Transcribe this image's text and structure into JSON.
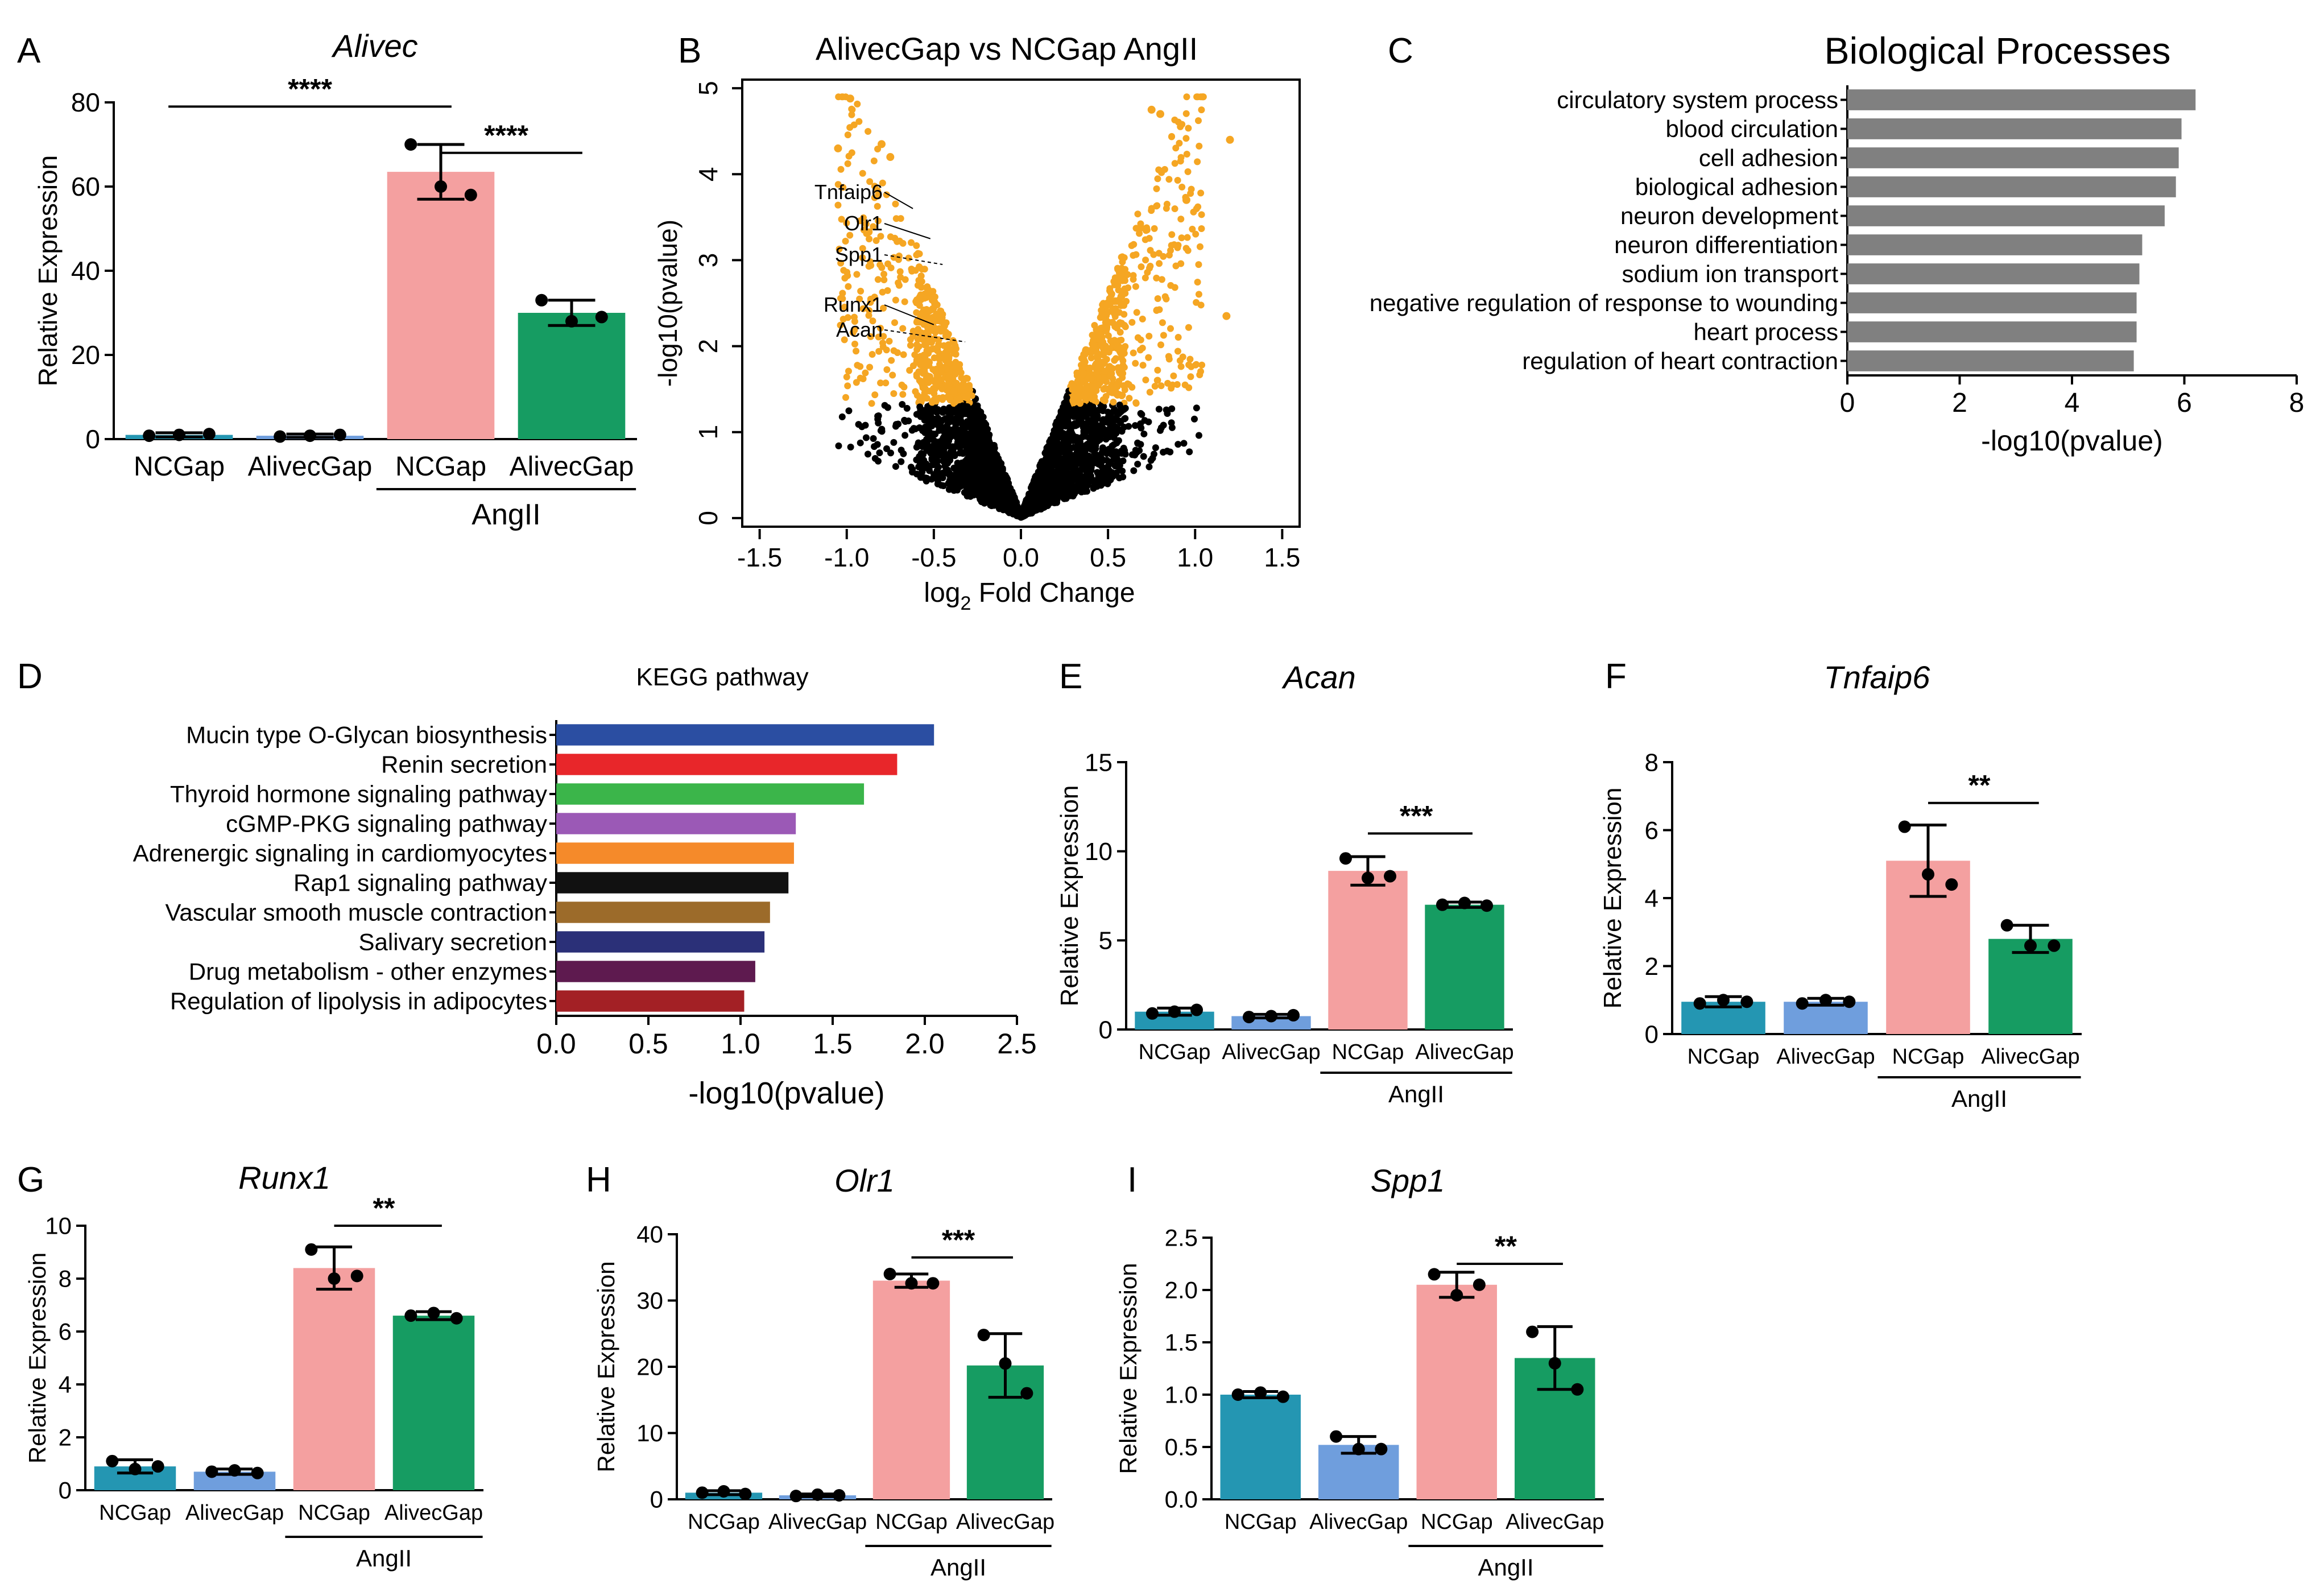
{
  "panel_letters": [
    "A",
    "B",
    "C",
    "D",
    "E",
    "F",
    "G",
    "H",
    "I"
  ],
  "colors": {
    "ncgap": "#2496b2",
    "alivecgap": "#6f9edd",
    "angii_ncgap": "#f4a0a0",
    "angii_alivecgap": "#169c62",
    "volcano_sig": "#f5a623",
    "volcano_ns": "#000000",
    "go_bar": "#808080"
  },
  "chart_data": [
    {
      "panel": "A",
      "type": "bar",
      "title": "Alivec",
      "ylabel": "Relative Expression",
      "ylim": [
        0,
        80
      ],
      "yticks": [
        0,
        20,
        40,
        60,
        80
      ],
      "categories": [
        "NCGap",
        "AlivecGap",
        "NCGap",
        "AlivecGap"
      ],
      "group_label": "AngII",
      "values": [
        1.0,
        0.8,
        63.5,
        30.0
      ],
      "errors": [
        0.5,
        0.4,
        6.5,
        3.0
      ],
      "points": [
        [
          0.8,
          1.0,
          1.2
        ],
        [
          0.6,
          0.8,
          1.0
        ],
        [
          70,
          60,
          58
        ],
        [
          33,
          28,
          29
        ]
      ],
      "significance": [
        {
          "from": 0,
          "to": 2,
          "label": "****",
          "level": 79
        },
        {
          "from": 2,
          "to": 3,
          "label": "****",
          "level": 68
        }
      ]
    },
    {
      "panel": "B",
      "type": "scatter",
      "title": "AlivecGap vs NCGap AngII",
      "xlabel": "log2 Fold Change",
      "xlabel_main": "log",
      "xlabel_sub": "2",
      "xlabel_rest": " Fold Change",
      "ylabel": "-log10(pvalue)",
      "xlim": [
        -1.6,
        1.6
      ],
      "ylim": [
        -0.1,
        5.1
      ],
      "xticks": [
        -1.5,
        -1.0,
        -0.5,
        0.0,
        0.5,
        1.0,
        1.5
      ],
      "yticks": [
        0,
        1,
        2,
        3,
        4,
        5
      ],
      "labeled_genes": [
        {
          "name": "Tnfaip6",
          "x": -0.62,
          "y": 3.6
        },
        {
          "name": "Olr1",
          "x": -0.52,
          "y": 3.25
        },
        {
          "name": "Spp1",
          "x": -0.45,
          "y": 2.95
        },
        {
          "name": "Runx1",
          "x": -0.5,
          "y": 2.25
        },
        {
          "name": "Acan",
          "x": -0.32,
          "y": 2.05
        }
      ]
    },
    {
      "panel": "C",
      "type": "bar",
      "orientation": "horizontal",
      "title": "Biological Processes",
      "xlabel": "-log10(pvalue)",
      "xlim": [
        0,
        8
      ],
      "xticks": [
        0,
        2,
        4,
        6,
        8
      ],
      "categories": [
        "circulatory system process",
        "blood circulation",
        "cell adhesion",
        "biological adhesion",
        "neuron development",
        "neuron differentiation",
        "sodium ion transport",
        "negative regulation of response to wounding",
        "heart process",
        "regulation of heart contraction"
      ],
      "values": [
        6.2,
        5.95,
        5.9,
        5.85,
        5.65,
        5.25,
        5.2,
        5.15,
        5.15,
        5.1
      ]
    },
    {
      "panel": "D",
      "type": "bar",
      "orientation": "horizontal",
      "title": "KEGG pathway",
      "xlabel": "-log10(pvalue)",
      "xlim": [
        0,
        2.5
      ],
      "xticks": [
        0.0,
        0.5,
        1.0,
        1.5,
        2.0,
        2.5
      ],
      "categories": [
        "Mucin type O-Glycan biosynthesis",
        "Renin secretion",
        "Thyroid hormone signaling pathway",
        "cGMP-PKG signaling pathway",
        "Adrenergic signaling in cardiomyocytes",
        "Rap1 signaling pathway",
        "Vascular smooth muscle contraction",
        "Salivary secretion",
        "Drug metabolism - other enzymes",
        "Regulation of lipolysis in adipocytes"
      ],
      "values": [
        2.05,
        1.85,
        1.67,
        1.3,
        1.29,
        1.26,
        1.16,
        1.13,
        1.08,
        1.02
      ],
      "bar_colors": [
        "#2b4ea2",
        "#e8262a",
        "#3bb54a",
        "#9b59b6",
        "#f58a2a",
        "#111111",
        "#9c6b2a",
        "#2b3078",
        "#5e1a4f",
        "#a32025"
      ]
    },
    {
      "panel": "E",
      "type": "bar",
      "title": "Acan",
      "ylabel": "Relative Expression",
      "ylim": [
        0,
        15
      ],
      "yticks": [
        0,
        5,
        10,
        15
      ],
      "categories": [
        "NCGap",
        "AlivecGap",
        "NCGap",
        "AlivecGap"
      ],
      "group_label": "AngII",
      "values": [
        1.0,
        0.75,
        8.9,
        7.0
      ],
      "errors": [
        0.2,
        0.1,
        0.8,
        0.15
      ],
      "points": [
        [
          0.9,
          1.0,
          1.1
        ],
        [
          0.7,
          0.75,
          0.8
        ],
        [
          9.6,
          8.5,
          8.6
        ],
        [
          7.0,
          7.1,
          6.95
        ]
      ],
      "significance": [
        {
          "from": 2,
          "to": 3,
          "label": "***",
          "level": 11
        }
      ]
    },
    {
      "panel": "F",
      "type": "bar",
      "title": "Tnfaip6",
      "ylabel": "Relative Expression",
      "ylim": [
        0,
        8
      ],
      "yticks": [
        0,
        2,
        4,
        6,
        8
      ],
      "categories": [
        "NCGap",
        "AlivecGap",
        "NCGap",
        "AlivecGap"
      ],
      "group_label": "AngII",
      "values": [
        0.95,
        0.95,
        5.1,
        2.8
      ],
      "errors": [
        0.15,
        0.1,
        1.05,
        0.4
      ],
      "points": [
        [
          0.9,
          1.0,
          0.95
        ],
        [
          0.9,
          1.0,
          0.95
        ],
        [
          6.1,
          4.7,
          4.4
        ],
        [
          3.2,
          2.6,
          2.6
        ]
      ],
      "significance": [
        {
          "from": 2,
          "to": 3,
          "label": "**",
          "level": 6.8
        }
      ]
    },
    {
      "panel": "G",
      "type": "bar",
      "title": "Runx1",
      "ylabel": "Relative Expression",
      "ylim": [
        0,
        10
      ],
      "yticks": [
        0,
        2,
        4,
        6,
        8,
        10
      ],
      "categories": [
        "NCGap",
        "AlivecGap",
        "NCGap",
        "AlivecGap"
      ],
      "group_label": "AngII",
      "values": [
        0.9,
        0.7,
        8.4,
        6.6
      ],
      "errors": [
        0.25,
        0.1,
        0.8,
        0.15
      ],
      "points": [
        [
          1.1,
          0.8,
          0.9
        ],
        [
          0.7,
          0.75,
          0.65
        ],
        [
          9.1,
          8.0,
          8.1
        ],
        [
          6.6,
          6.7,
          6.5
        ]
      ],
      "significance": [
        {
          "from": 2,
          "to": 3,
          "label": "**",
          "level": 10
        }
      ]
    },
    {
      "panel": "H",
      "type": "bar",
      "title": "Olr1",
      "ylabel": "Relative Expression",
      "ylim": [
        0,
        40
      ],
      "yticks": [
        0,
        10,
        20,
        30,
        40
      ],
      "categories": [
        "NCGap",
        "AlivecGap",
        "NCGap",
        "AlivecGap"
      ],
      "group_label": "AngII",
      "values": [
        1.0,
        0.6,
        33.0,
        20.2
      ],
      "errors": [
        0.3,
        0.2,
        1.0,
        4.8
      ],
      "points": [
        [
          1.0,
          1.2,
          0.8
        ],
        [
          0.5,
          0.7,
          0.6
        ],
        [
          34,
          32.6,
          32.6
        ],
        [
          24.8,
          20.5,
          16
        ]
      ],
      "significance": [
        {
          "from": 2,
          "to": 3,
          "label": "***",
          "level": 36.5
        }
      ]
    },
    {
      "panel": "I",
      "type": "bar",
      "title": "Spp1",
      "ylabel": "Relative Expression",
      "ylim": [
        0,
        2.5
      ],
      "yticks": [
        0.0,
        0.5,
        1.0,
        1.5,
        2.0,
        2.5
      ],
      "categories": [
        "NCGap",
        "AlivecGap",
        "NCGap",
        "AlivecGap"
      ],
      "group_label": "AngII",
      "values": [
        1.0,
        0.52,
        2.05,
        1.35
      ],
      "errors": [
        0.03,
        0.08,
        0.12,
        0.3
      ],
      "points": [
        [
          1.0,
          1.02,
          0.98
        ],
        [
          0.6,
          0.48,
          0.48
        ],
        [
          2.15,
          1.95,
          2.05
        ],
        [
          1.6,
          1.3,
          1.05
        ]
      ],
      "significance": [
        {
          "from": 2,
          "to": 3,
          "label": "**",
          "level": 2.25
        }
      ]
    }
  ]
}
